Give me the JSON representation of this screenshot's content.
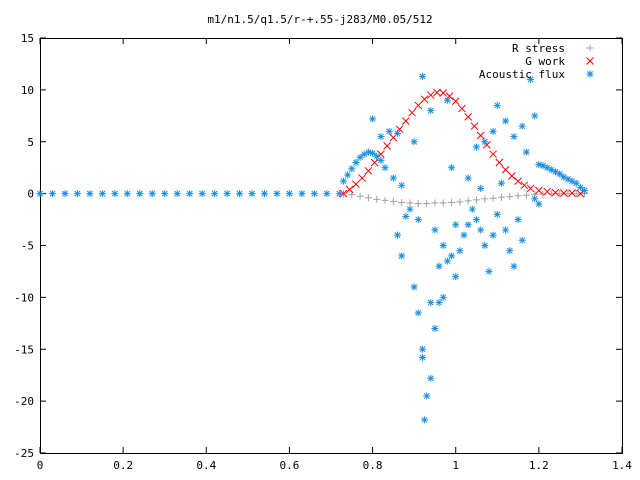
{
  "chart_data": {
    "type": "scatter",
    "title": "m1/n1.5/q1.5/r-+.55-j283/M0.05/512",
    "xlabel": "",
    "ylabel": "",
    "xlim": [
      0,
      1.4
    ],
    "ylim": [
      -25,
      15
    ],
    "xticks": [
      "0",
      "0.2",
      "0.4",
      "0.6",
      "0.8",
      "1",
      "1.2",
      "1.4"
    ],
    "yticks": [
      "15",
      "10",
      "5",
      "0",
      "-5",
      "-10",
      "-15",
      "-20",
      "-25"
    ],
    "grid": false,
    "legend_position": "top-right",
    "series": [
      {
        "name": "R stress",
        "marker": "+",
        "color": "#a0a0a0",
        "points": [
          [
            0.73,
            0.0
          ],
          [
            0.75,
            -0.1
          ],
          [
            0.77,
            -0.25
          ],
          [
            0.79,
            -0.4
          ],
          [
            0.81,
            -0.55
          ],
          [
            0.83,
            -0.65
          ],
          [
            0.85,
            -0.75
          ],
          [
            0.87,
            -0.85
          ],
          [
            0.89,
            -0.9
          ],
          [
            0.91,
            -0.95
          ],
          [
            0.93,
            -0.95
          ],
          [
            0.95,
            -0.9
          ],
          [
            0.97,
            -0.9
          ],
          [
            0.99,
            -0.85
          ],
          [
            1.01,
            -0.8
          ],
          [
            1.03,
            -0.7
          ],
          [
            1.05,
            -0.6
          ],
          [
            1.07,
            -0.5
          ],
          [
            1.09,
            -0.45
          ],
          [
            1.11,
            -0.35
          ],
          [
            1.13,
            -0.3
          ],
          [
            1.15,
            -0.2
          ],
          [
            1.17,
            -0.15
          ],
          [
            1.19,
            -0.1
          ],
          [
            1.21,
            -0.05
          ],
          [
            1.23,
            0.0
          ],
          [
            1.25,
            0.0
          ],
          [
            1.27,
            0.0
          ],
          [
            1.29,
            0.0
          ],
          [
            1.31,
            0.0
          ]
        ]
      },
      {
        "name": "G work",
        "marker": "x",
        "color": "#ff0000",
        "points": [
          [
            0.73,
            0.0
          ],
          [
            0.745,
            0.4
          ],
          [
            0.76,
            0.9
          ],
          [
            0.775,
            1.5
          ],
          [
            0.79,
            2.2
          ],
          [
            0.805,
            3.0
          ],
          [
            0.82,
            3.8
          ],
          [
            0.835,
            4.6
          ],
          [
            0.85,
            5.4
          ],
          [
            0.865,
            6.2
          ],
          [
            0.88,
            7.0
          ],
          [
            0.895,
            7.8
          ],
          [
            0.91,
            8.5
          ],
          [
            0.925,
            9.1
          ],
          [
            0.94,
            9.5
          ],
          [
            0.955,
            9.75
          ],
          [
            0.97,
            9.7
          ],
          [
            0.985,
            9.4
          ],
          [
            1.0,
            8.9
          ],
          [
            1.015,
            8.2
          ],
          [
            1.03,
            7.4
          ],
          [
            1.045,
            6.5
          ],
          [
            1.06,
            5.6
          ],
          [
            1.075,
            4.7
          ],
          [
            1.09,
            3.8
          ],
          [
            1.105,
            3.0
          ],
          [
            1.12,
            2.3
          ],
          [
            1.135,
            1.7
          ],
          [
            1.15,
            1.2
          ],
          [
            1.165,
            0.8
          ],
          [
            1.18,
            0.5
          ],
          [
            1.2,
            0.3
          ],
          [
            1.22,
            0.2
          ],
          [
            1.24,
            0.1
          ],
          [
            1.26,
            0.05
          ],
          [
            1.28,
            0.05
          ],
          [
            1.3,
            0.0
          ]
        ]
      },
      {
        "name": "Acoustic flux",
        "marker": "*",
        "color": "#1a8fe0",
        "points": [
          [
            0.0,
            0.0
          ],
          [
            0.03,
            0.0
          ],
          [
            0.06,
            0.0
          ],
          [
            0.09,
            0.0
          ],
          [
            0.12,
            0.0
          ],
          [
            0.15,
            0.0
          ],
          [
            0.18,
            0.0
          ],
          [
            0.21,
            0.0
          ],
          [
            0.24,
            0.0
          ],
          [
            0.27,
            0.0
          ],
          [
            0.3,
            0.0
          ],
          [
            0.33,
            0.0
          ],
          [
            0.36,
            0.0
          ],
          [
            0.39,
            0.0
          ],
          [
            0.42,
            0.0
          ],
          [
            0.45,
            0.0
          ],
          [
            0.48,
            0.0
          ],
          [
            0.51,
            0.0
          ],
          [
            0.54,
            0.0
          ],
          [
            0.57,
            0.0
          ],
          [
            0.6,
            0.0
          ],
          [
            0.63,
            0.0
          ],
          [
            0.66,
            0.0
          ],
          [
            0.69,
            0.0
          ],
          [
            0.72,
            0.0
          ],
          [
            0.73,
            1.2
          ],
          [
            0.74,
            1.8
          ],
          [
            0.75,
            2.4
          ],
          [
            0.76,
            3.0
          ],
          [
            0.77,
            3.5
          ],
          [
            0.78,
            3.8
          ],
          [
            0.79,
            4.0
          ],
          [
            0.8,
            3.9
          ],
          [
            0.81,
            3.6
          ],
          [
            0.82,
            3.2
          ],
          [
            0.8,
            7.2
          ],
          [
            0.82,
            5.5
          ],
          [
            0.84,
            6.0
          ],
          [
            0.86,
            5.8
          ],
          [
            0.83,
            2.5
          ],
          [
            0.85,
            1.5
          ],
          [
            0.87,
            0.8
          ],
          [
            0.88,
            -2.2
          ],
          [
            0.86,
            -4.0
          ],
          [
            0.87,
            -6.0
          ],
          [
            0.9,
            -9.0
          ],
          [
            0.91,
            -11.5
          ],
          [
            0.92,
            -15.0
          ],
          [
            0.92,
            -15.8
          ],
          [
            0.93,
            -19.5
          ],
          [
            0.94,
            -17.8
          ],
          [
            0.925,
            -21.8
          ],
          [
            0.95,
            -13.0
          ],
          [
            0.96,
            -10.5
          ],
          [
            0.94,
            -10.5
          ],
          [
            0.97,
            -10.0
          ],
          [
            0.96,
            -7.0
          ],
          [
            0.98,
            -6.5
          ],
          [
            0.99,
            -6.0
          ],
          [
            1.0,
            -8.0
          ],
          [
            1.01,
            -5.5
          ],
          [
            1.02,
            -4.0
          ],
          [
            1.03,
            -3.0
          ],
          [
            1.05,
            -2.5
          ],
          [
            1.06,
            -3.5
          ],
          [
            1.07,
            -5.0
          ],
          [
            1.08,
            -7.5
          ],
          [
            1.09,
            -4.0
          ],
          [
            1.1,
            -2.0
          ],
          [
            1.12,
            -3.5
          ],
          [
            1.13,
            -5.5
          ],
          [
            1.14,
            -7.0
          ],
          [
            1.15,
            -2.5
          ],
          [
            1.16,
            -4.5
          ],
          [
            0.89,
            -1.5
          ],
          [
            0.91,
            -2.5
          ],
          [
            0.95,
            -3.5
          ],
          [
            0.97,
            -5.0
          ],
          [
            1.0,
            -3.0
          ],
          [
            1.04,
            -1.5
          ],
          [
            0.92,
            11.3
          ],
          [
            0.9,
            5.0
          ],
          [
            0.94,
            8.0
          ],
          [
            0.98,
            9.0
          ],
          [
            1.05,
            4.5
          ],
          [
            1.07,
            5.0
          ],
          [
            1.09,
            6.0
          ],
          [
            1.1,
            8.5
          ],
          [
            1.12,
            7.0
          ],
          [
            1.14,
            5.5
          ],
          [
            1.16,
            6.5
          ],
          [
            1.17,
            4.0
          ],
          [
            1.18,
            11.0
          ],
          [
            1.19,
            7.5
          ],
          [
            1.2,
            2.8
          ],
          [
            1.21,
            2.7
          ],
          [
            1.22,
            2.5
          ],
          [
            1.23,
            2.3
          ],
          [
            1.24,
            2.1
          ],
          [
            1.25,
            1.9
          ],
          [
            1.26,
            1.6
          ],
          [
            1.27,
            1.4
          ],
          [
            1.28,
            1.2
          ],
          [
            1.29,
            1.0
          ],
          [
            1.3,
            0.6
          ],
          [
            1.31,
            0.3
          ],
          [
            1.2,
            -1.0
          ],
          [
            1.19,
            -0.5
          ],
          [
            1.11,
            1.0
          ],
          [
            1.06,
            0.5
          ],
          [
            1.03,
            1.5
          ],
          [
            0.99,
            2.5
          ]
        ]
      }
    ]
  }
}
